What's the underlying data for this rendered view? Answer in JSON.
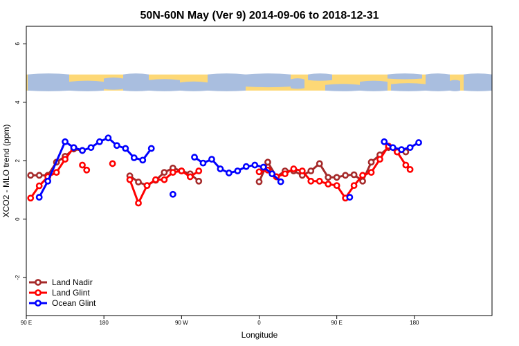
{
  "chart_data": {
    "type": "line",
    "title": "50N-60N May (Ver 9)   2014-09-06 to 2018-12-31",
    "xlabel": "Longitude",
    "ylabel": "XCO2 - MLO trend (ppm)",
    "xlim": [
      -90,
      180
    ],
    "ylim": [
      -3.3,
      6.6
    ],
    "x_ticks": [
      {
        "value": -90,
        "label": "90 E"
      },
      {
        "value": -45,
        "label": "180"
      },
      {
        "value": 0,
        "label": "90 W"
      },
      {
        "value": 45,
        "label": "0"
      },
      {
        "value": 90,
        "label": "90 E"
      },
      {
        "value": 135,
        "label": "180"
      }
    ],
    "y_ticks": [
      -2,
      0,
      2,
      4,
      6
    ],
    "legend_position": "bottom-left",
    "map_strip": {
      "y_bottom": 4.4,
      "y_top": 4.95,
      "ocean_color": "#A9BEDF",
      "land_color": "#FDD876"
    },
    "series": [
      {
        "name": "Land Nadir",
        "color": "#A52A2A",
        "segments": [
          [
            [
              -87.5,
              1.5
            ],
            [
              -82.5,
              1.5
            ],
            [
              -77.5,
              1.5
            ],
            [
              -72.5,
              1.95
            ],
            [
              -67.5,
              2.15
            ],
            [
              -62.5,
              2.4
            ],
            [
              -57.5,
              2.35
            ]
          ],
          [
            [
              -30,
              1.48
            ],
            [
              -25,
              1.27
            ],
            [
              -20,
              1.15
            ],
            [
              -15,
              1.33
            ],
            [
              -10,
              1.6
            ],
            [
              -5,
              1.75
            ],
            [
              0,
              1.65
            ],
            [
              5,
              1.55
            ],
            [
              10,
              1.3
            ]
          ],
          [
            [
              45,
              1.28
            ],
            [
              50,
              1.95
            ],
            [
              55,
              1.45
            ],
            [
              60,
              1.65
            ],
            [
              65,
              1.65
            ],
            [
              70,
              1.5
            ],
            [
              75,
              1.65
            ],
            [
              80,
              1.9
            ],
            [
              85,
              1.43
            ],
            [
              90,
              1.43
            ],
            [
              95,
              1.5
            ],
            [
              100,
              1.52
            ],
            [
              105,
              1.3
            ],
            [
              110,
              1.95
            ],
            [
              115,
              2.2
            ],
            [
              120,
              2.45
            ],
            [
              125,
              2.3
            ],
            [
              130,
              2.3
            ]
          ]
        ]
      },
      {
        "name": "Land Glint",
        "color": "#FF0000",
        "segments": [
          [
            [
              -87.5,
              0.72
            ],
            [
              -82.5,
              1.14
            ],
            [
              -77.5,
              1.45
            ],
            [
              -72.5,
              1.6
            ],
            [
              -67.5,
              2.05
            ],
            [
              -62.5,
              2.45
            ]
          ],
          [
            [
              -57.5,
              1.85
            ],
            [
              -55,
              1.68
            ]
          ],
          [
            [
              -40,
              1.9
            ]
          ],
          [
            [
              -30,
              1.35
            ],
            [
              -25,
              0.55
            ],
            [
              -20,
              1.15
            ],
            [
              -15,
              1.35
            ],
            [
              -10,
              1.35
            ],
            [
              -5,
              1.6
            ],
            [
              0,
              1.65
            ],
            [
              5,
              1.45
            ],
            [
              10,
              1.65
            ]
          ],
          [
            [
              45,
              1.62
            ],
            [
              50,
              1.68
            ],
            [
              55,
              1.45
            ],
            [
              60,
              1.55
            ],
            [
              65,
              1.72
            ],
            [
              70,
              1.65
            ],
            [
              75,
              1.3
            ],
            [
              80,
              1.3
            ],
            [
              85,
              1.2
            ],
            [
              90,
              1.15
            ],
            [
              95,
              0.72
            ],
            [
              100,
              1.15
            ],
            [
              105,
              1.5
            ],
            [
              110,
              1.6
            ],
            [
              115,
              2.05
            ],
            [
              120,
              2.5
            ],
            [
              125,
              2.3
            ],
            [
              130,
              1.85
            ],
            [
              132.5,
              1.7
            ]
          ]
        ]
      },
      {
        "name": "Ocean Glint",
        "color": "#0000FF",
        "segments": [
          [
            [
              -82.5,
              0.75
            ],
            [
              -77.5,
              1.3
            ],
            [
              -67.5,
              2.65
            ],
            [
              -62.5,
              2.45
            ],
            [
              -57.5,
              2.35
            ],
            [
              -52.5,
              2.45
            ],
            [
              -47.5,
              2.65
            ],
            [
              -42.5,
              2.78
            ],
            [
              -37.5,
              2.52
            ],
            [
              -32.5,
              2.42
            ],
            [
              -27.5,
              2.1
            ],
            [
              -22.5,
              2.02
            ],
            [
              -17.5,
              2.42
            ]
          ],
          [
            [
              -5,
              0.85
            ]
          ],
          [
            [
              7.5,
              2.12
            ],
            [
              12.5,
              1.92
            ],
            [
              17.5,
              2.05
            ],
            [
              22.5,
              1.72
            ],
            [
              27.5,
              1.58
            ],
            [
              32.5,
              1.65
            ],
            [
              37.5,
              1.8
            ],
            [
              42.5,
              1.85
            ],
            [
              47.5,
              1.78
            ],
            [
              52.5,
              1.55
            ],
            [
              57.5,
              1.28
            ]
          ],
          [
            [
              97.5,
              0.75
            ]
          ],
          [
            [
              117.5,
              2.65
            ],
            [
              122.5,
              2.45
            ],
            [
              127.5,
              2.38
            ],
            [
              132.5,
              2.45
            ],
            [
              137.5,
              2.62
            ]
          ]
        ]
      }
    ]
  }
}
